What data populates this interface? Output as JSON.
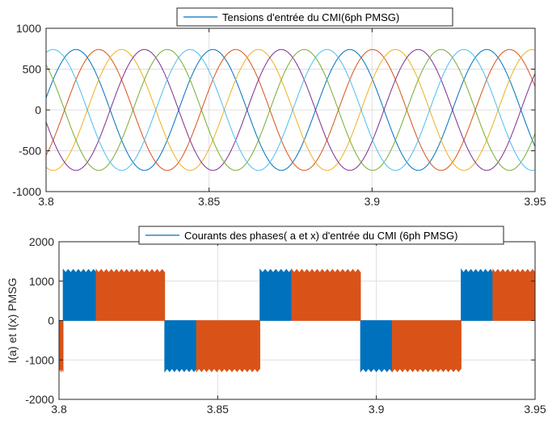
{
  "chart_data": [
    {
      "type": "line",
      "legend": "Tensions d'entrée du CMI(6ph PMSG)",
      "xlabel": "",
      "ylabel": "",
      "xlim": [
        3.8,
        3.95
      ],
      "ylim": [
        -1000,
        1000
      ],
      "xticks": [
        3.8,
        3.85,
        3.9,
        3.95
      ],
      "xticklabels": [
        "3.8",
        "3.85",
        "3.9",
        "3.95"
      ],
      "yticks": [
        -1000,
        -500,
        0,
        500,
        1000
      ],
      "yticklabels": [
        "-1000",
        "-500",
        "0",
        "500",
        "1000"
      ],
      "grid": true,
      "legend_position": "top-center",
      "waveform": {
        "shape": "sinusoidal",
        "amplitude": 740,
        "period": 0.042
      },
      "series": [
        {
          "color": "#0072BD",
          "phase_deg": 0
        },
        {
          "color": "#D95319",
          "phase_deg": 60
        },
        {
          "color": "#EDB120",
          "phase_deg": 120
        },
        {
          "color": "#7E2F8E",
          "phase_deg": 180
        },
        {
          "color": "#77AC30",
          "phase_deg": 240
        },
        {
          "color": "#4DBEEE",
          "phase_deg": 300
        }
      ]
    },
    {
      "type": "line",
      "legend": "Courants des phases( a et x) d'entrée du CMI (6ph PMSG)",
      "xlabel": "",
      "ylabel": "I(a) et I(x) PMSG",
      "xlim": [
        3.8,
        3.95
      ],
      "ylim": [
        -2000,
        2000
      ],
      "xticks": [
        3.8,
        3.85,
        3.9,
        3.95
      ],
      "xticklabels": [
        "3.8",
        "3.85",
        "3.9",
        "3.95"
      ],
      "yticks": [
        -2000,
        -1000,
        0,
        1000,
        2000
      ],
      "yticklabels": [
        "-2000",
        "-1000",
        "0",
        "1000",
        "2000"
      ],
      "grid": true,
      "legend_position": "top-center",
      "ripple_amplitude": 80,
      "series": [
        {
          "color": "#0072BD",
          "segments": [
            {
              "x0": 3.8013,
              "x1": 3.8117,
              "value": 1250
            },
            {
              "x0": 3.8333,
              "x1": 3.8433,
              "value": -1250
            },
            {
              "x0": 3.8633,
              "x1": 3.8733,
              "value": 1250
            },
            {
              "x0": 3.895,
              "x1": 3.905,
              "value": -1250
            },
            {
              "x0": 3.9267,
              "x1": 3.9367,
              "value": 1250
            }
          ]
        },
        {
          "color": "#D95319",
          "segments": [
            {
              "x0": 3.8,
              "x1": 3.8013,
              "value": -1250
            },
            {
              "x0": 3.8117,
              "x1": 3.8333,
              "value": 1250
            },
            {
              "x0": 3.8433,
              "x1": 3.8633,
              "value": -1250
            },
            {
              "x0": 3.8733,
              "x1": 3.895,
              "value": 1250
            },
            {
              "x0": 3.905,
              "x1": 3.9267,
              "value": -1250
            },
            {
              "x0": 3.9367,
              "x1": 3.95,
              "value": 1250
            }
          ]
        }
      ]
    }
  ]
}
